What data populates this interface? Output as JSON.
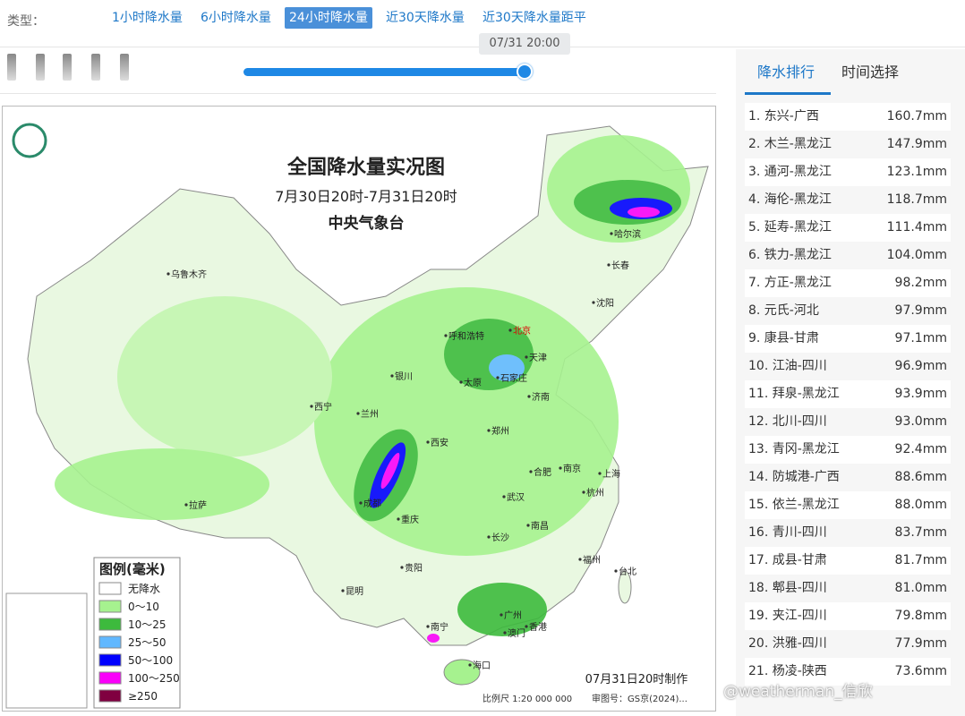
{
  "toolbar": {
    "label": "类型：",
    "tabs": [
      "1小时降水量",
      "6小时降水量",
      "24小时降水量",
      "近30天降水量",
      "近30天降水量距平"
    ],
    "active_tab": 2
  },
  "slider": {
    "time": "07/31 20:00"
  },
  "map": {
    "title": "全国降水量实况图",
    "period": "7月30日20时-7月31日20时",
    "source": "中央气象台",
    "made": "07月31日20时制作",
    "scale": "比例尺 1:20 000 000",
    "approval": "审图号：GS京(2024)...",
    "legend": {
      "title": "图例(毫米)",
      "items": [
        {
          "label": "无降水",
          "color": "#ffffff"
        },
        {
          "label": "0～10",
          "color": "#a6f28f"
        },
        {
          "label": "10～25",
          "color": "#3dba3d"
        },
        {
          "label": "25～50",
          "color": "#61b8ff"
        },
        {
          "label": "50～100",
          "color": "#0000fe"
        },
        {
          "label": "100～250",
          "color": "#fa00fa"
        },
        {
          "label": "≥250",
          "color": "#800040"
        }
      ]
    },
    "cities": [
      "乌鲁木齐",
      "哈尔滨",
      "长春",
      "沈阳",
      "呼和浩特",
      "北京",
      "天津",
      "石家庄",
      "太原",
      "银川",
      "西宁",
      "兰州",
      "济南",
      "郑州",
      "西安",
      "合肥",
      "南京",
      "上海",
      "成都",
      "重庆",
      "武汉",
      "杭州",
      "拉萨",
      "长沙",
      "南昌",
      "福州",
      "台北",
      "贵阳",
      "昆明",
      "南宁",
      "广州",
      "香港",
      "澳门",
      "海口"
    ]
  },
  "sidebar": {
    "tabs": [
      "降水排行",
      "时间选择"
    ],
    "active_tab": 0,
    "ranking": [
      [
        "1. 东兴-广西",
        "160.7mm"
      ],
      [
        "2. 木兰-黑龙江",
        "147.9mm"
      ],
      [
        "3. 通河-黑龙江",
        "123.1mm"
      ],
      [
        "4. 海伦-黑龙江",
        "118.7mm"
      ],
      [
        "5. 延寿-黑龙江",
        "111.4mm"
      ],
      [
        "6. 铁力-黑龙江",
        "104.0mm"
      ],
      [
        "7. 方正-黑龙江",
        "98.2mm"
      ],
      [
        "8. 元氏-河北",
        "97.9mm"
      ],
      [
        "9. 康县-甘肃",
        "97.1mm"
      ],
      [
        "10. 江油-四川",
        "96.9mm"
      ],
      [
        "11. 拜泉-黑龙江",
        "93.9mm"
      ],
      [
        "12. 北川-四川",
        "93.0mm"
      ],
      [
        "13. 青冈-黑龙江",
        "92.4mm"
      ],
      [
        "14. 防城港-广西",
        "88.6mm"
      ],
      [
        "15. 依兰-黑龙江",
        "88.0mm"
      ],
      [
        "16. 青川-四川",
        "83.7mm"
      ],
      [
        "17. 成县-甘肃",
        "81.7mm"
      ],
      [
        "18. 郫县-四川",
        "81.0mm"
      ],
      [
        "19. 夹江-四川",
        "79.8mm"
      ],
      [
        "20. 洪雅-四川",
        "77.9mm"
      ],
      [
        "21. 杨凌-陕西",
        "73.6mm"
      ]
    ]
  },
  "watermark": "@weatherman_信欣"
}
